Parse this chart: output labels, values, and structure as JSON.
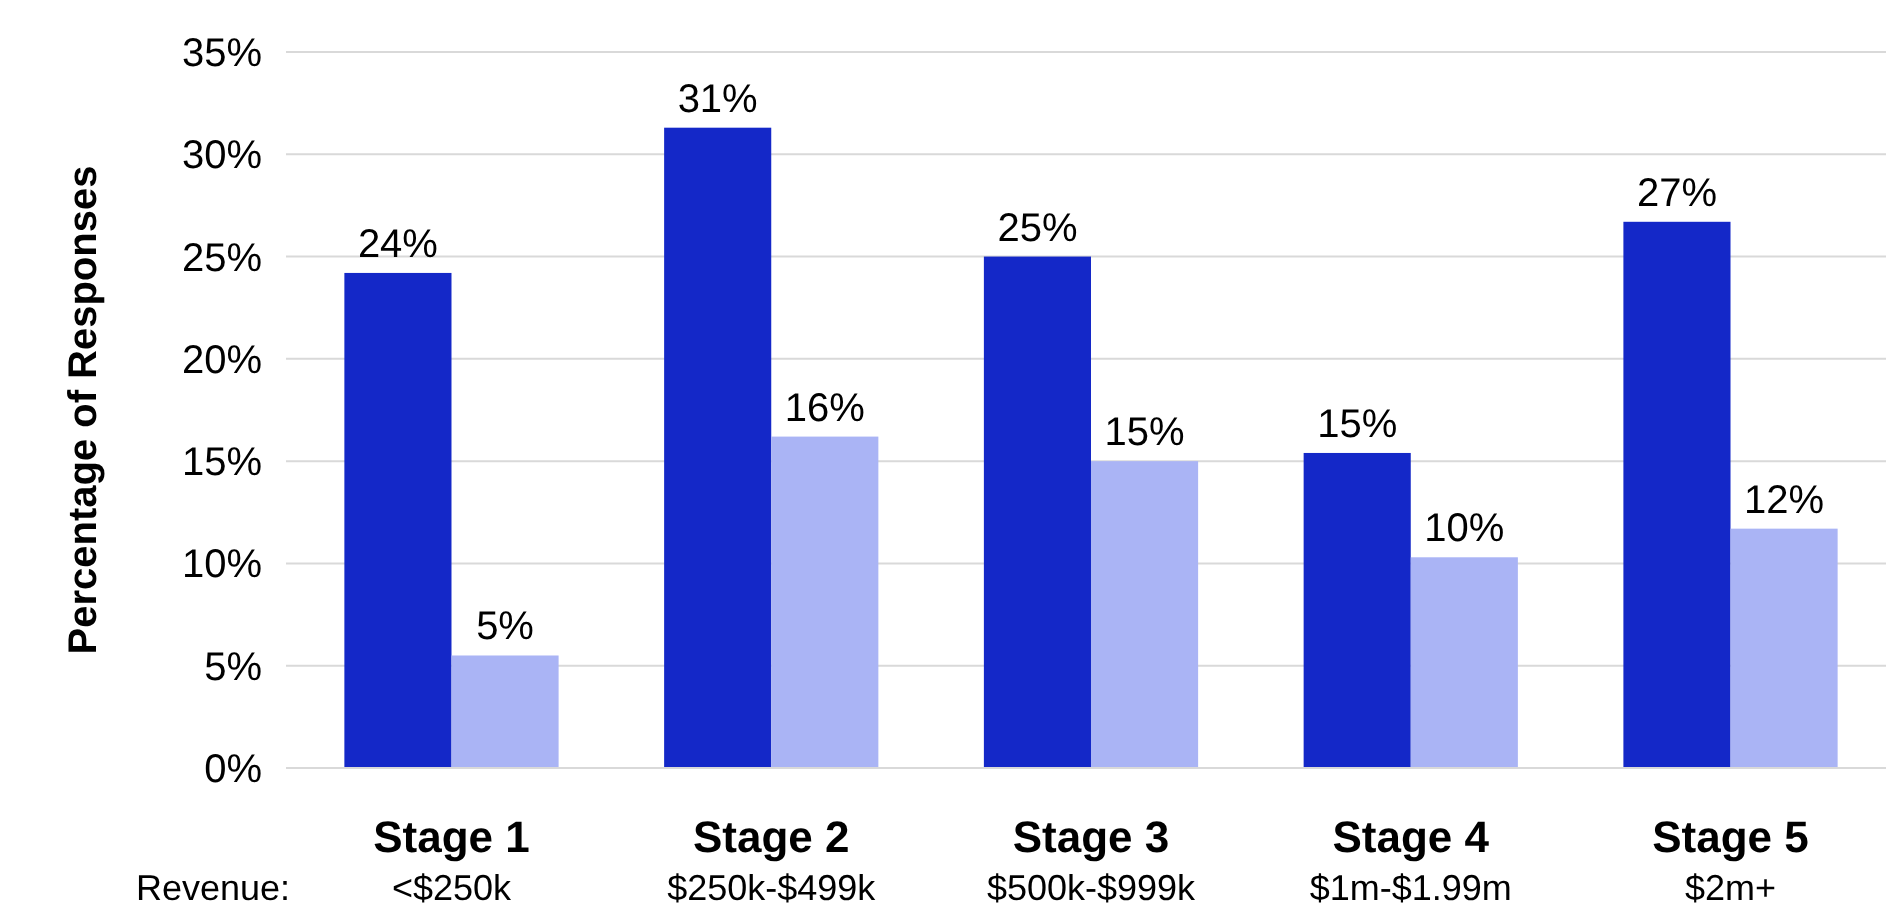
{
  "chart_data": {
    "type": "bar",
    "ylabel": "Percentage of Responses",
    "categories": [
      "Stage 1\n<$250k",
      "Stage 2\n$250k-$499k",
      "Stage 3\n$500k-$999k",
      "Stage 4\n$1m-$1.99m",
      "Stage 5\n$2m+"
    ],
    "series": [
      {
        "color": "#1428c8",
        "values": [
          24.2,
          31.3,
          25.0,
          15.4,
          26.7
        ],
        "value_labels": [
          "24%",
          "31%",
          "25%",
          "15%",
          "27%"
        ]
      },
      {
        "color": "#aab4f5",
        "values": [
          5.5,
          16.2,
          15.0,
          10.3,
          11.7
        ],
        "value_labels": [
          "5%",
          "16%",
          "15%",
          "10%",
          "12%"
        ]
      }
    ],
    "ylim": [
      0,
      35
    ],
    "yticks": [
      {
        "value": 0,
        "label": "0%"
      },
      {
        "value": 5,
        "label": "5%"
      },
      {
        "value": 10,
        "label": "10%"
      },
      {
        "value": 15,
        "label": "15%"
      },
      {
        "value": 20,
        "label": "20%"
      },
      {
        "value": 25,
        "label": "25%"
      },
      {
        "value": 30,
        "label": "30%"
      },
      {
        "value": 35,
        "label": "35%"
      }
    ],
    "grid": "y",
    "annotations": [
      "Revenue:"
    ]
  }
}
